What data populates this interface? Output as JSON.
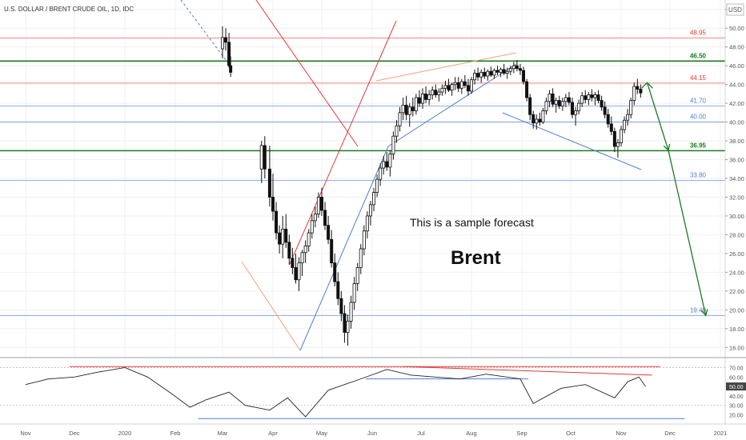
{
  "header": {
    "title": "U.S. DOLLAR / BRENT CRUDE OIL, 1D, IDC"
  },
  "currency_badge": "USD",
  "annotations": {
    "forecast_note": "This is a sample forecast",
    "main_label": "Brent"
  },
  "colors": {
    "up": "#111111",
    "down": "#111111",
    "red": "#e53935",
    "green": "#1b7a1f",
    "blue": "#4c7fd1",
    "orange": "#f4a07a",
    "grid": "#eef0f3",
    "axis_text": "#555555"
  },
  "chart_data": {
    "type": "candlestick",
    "title": "U.S. DOLLAR / BRENT CRUDE OIL, 1D, IDC",
    "y_axis": {
      "ylim": [
        15.0,
        53.0
      ],
      "ticks": [
        16,
        18,
        20,
        22,
        24,
        26,
        28,
        30,
        32,
        34,
        36,
        38,
        40,
        42,
        44,
        46,
        48,
        50,
        52
      ],
      "tick_labels": [
        "16.00",
        "18.00",
        "20.00",
        "22.00",
        "24.00",
        "26.00",
        "28.00",
        "30.00",
        "32.00",
        "34.00",
        "36.00",
        "38.00",
        "40.00",
        "42.00",
        "44.00",
        "46.00",
        "48.00",
        "50.00",
        "52.00"
      ]
    },
    "x_axis": {
      "labels": [
        "Nov",
        "Dec",
        "2020",
        "Feb",
        "Mar",
        "Apr",
        "May",
        "Jun",
        "Jul",
        "Aug",
        "Sep",
        "Oct",
        "Nov",
        "Dec",
        "2021"
      ],
      "dates": [
        "2019-11-01",
        "2019-12-01",
        "2020-01-01",
        "2020-02-01",
        "2020-03-01",
        "2020-04-01",
        "2020-05-01",
        "2020-06-01",
        "2020-07-01",
        "2020-08-01",
        "2020-09-01",
        "2020-10-01",
        "2020-11-01",
        "2020-12-01",
        "2021-01-01"
      ]
    },
    "levels": [
      {
        "value": 48.95,
        "label": "48.95",
        "color": "red",
        "style": "thin"
      },
      {
        "value": 46.5,
        "label": "46.50",
        "color": "green",
        "style": "bold"
      },
      {
        "value": 44.15,
        "label": "44.15",
        "color": "red",
        "style": "thin"
      },
      {
        "value": 41.7,
        "label": "41.70",
        "color": "blue",
        "style": "thin"
      },
      {
        "value": 40.0,
        "label": "40.00",
        "color": "blue",
        "style": "thin"
      },
      {
        "value": 36.95,
        "label": "36.95",
        "color": "green",
        "style": "bold"
      },
      {
        "value": 33.8,
        "label": "33.80",
        "color": "blue",
        "style": "thin"
      },
      {
        "value": 19.4,
        "label": "19.40",
        "color": "blue",
        "style": "thin"
      }
    ],
    "candles": [
      [
        "2020-03-01",
        47.8,
        50.2,
        46.8,
        49.0
      ],
      [
        "2020-03-03",
        49.0,
        50.0,
        47.6,
        48.5
      ],
      [
        "2020-03-05",
        48.5,
        49.5,
        45.8,
        46.0
      ],
      [
        "2020-03-06",
        46.0,
        47.0,
        44.8,
        45.3
      ],
      [
        "2020-03-25",
        35.0,
        38.0,
        33.5,
        37.5
      ],
      [
        "2020-03-27",
        37.5,
        38.5,
        34.0,
        35.0
      ],
      [
        "2020-03-30",
        35.0,
        37.5,
        31.0,
        32.0
      ],
      [
        "2020-04-01",
        32.0,
        34.5,
        29.5,
        30.5
      ],
      [
        "2020-04-03",
        30.5,
        31.5,
        27.5,
        28.2
      ],
      [
        "2020-04-05",
        28.2,
        29.0,
        26.0,
        27.0
      ],
      [
        "2020-04-07",
        27.0,
        30.0,
        25.5,
        28.6
      ],
      [
        "2020-04-09",
        28.6,
        30.2,
        26.6,
        27.2
      ],
      [
        "2020-04-11",
        27.2,
        28.0,
        24.8,
        25.5
      ],
      [
        "2020-04-13",
        25.5,
        26.6,
        23.8,
        24.5
      ],
      [
        "2020-04-15",
        24.5,
        26.0,
        22.8,
        23.2
      ],
      [
        "2020-04-17",
        23.2,
        25.6,
        22.0,
        25.0
      ],
      [
        "2020-04-19",
        25.0,
        26.4,
        23.6,
        26.1
      ],
      [
        "2020-04-21",
        26.1,
        27.4,
        25.0,
        26.8
      ],
      [
        "2020-04-23",
        26.8,
        28.6,
        26.2,
        28.2
      ],
      [
        "2020-04-25",
        28.2,
        30.2,
        27.6,
        29.5
      ],
      [
        "2020-04-27",
        29.5,
        31.0,
        28.8,
        30.2
      ],
      [
        "2020-04-29",
        30.2,
        32.5,
        29.8,
        32.0
      ],
      [
        "2020-05-01",
        32.0,
        33.0,
        30.0,
        30.6
      ],
      [
        "2020-05-03",
        30.6,
        31.5,
        28.5,
        29.0
      ],
      [
        "2020-05-05",
        29.0,
        30.0,
        27.0,
        27.5
      ],
      [
        "2020-05-07",
        27.5,
        28.5,
        24.5,
        25.0
      ],
      [
        "2020-05-09",
        25.0,
        26.0,
        22.5,
        23.0
      ],
      [
        "2020-05-11",
        23.0,
        24.0,
        20.5,
        21.2
      ],
      [
        "2020-05-13",
        21.2,
        22.0,
        18.8,
        19.6
      ],
      [
        "2020-05-15",
        19.6,
        20.5,
        16.5,
        17.6
      ],
      [
        "2020-05-17",
        17.6,
        19.5,
        16.2,
        18.8
      ],
      [
        "2020-05-19",
        18.8,
        21.5,
        18.0,
        20.8
      ],
      [
        "2020-05-21",
        20.8,
        23.5,
        20.0,
        22.8
      ],
      [
        "2020-05-23",
        22.8,
        25.0,
        22.0,
        24.5
      ],
      [
        "2020-05-25",
        24.5,
        27.0,
        23.8,
        26.5
      ],
      [
        "2020-05-27",
        26.5,
        29.0,
        25.8,
        28.4
      ],
      [
        "2020-05-29",
        28.4,
        30.5,
        27.6,
        30.0
      ],
      [
        "2020-05-31",
        30.0,
        31.6,
        29.0,
        31.2
      ],
      [
        "2020-06-02",
        31.2,
        33.0,
        30.5,
        32.5
      ],
      [
        "2020-06-04",
        32.5,
        34.4,
        32.0,
        33.9
      ],
      [
        "2020-06-06",
        33.9,
        35.6,
        33.2,
        35.1
      ],
      [
        "2020-06-08",
        35.1,
        36.4,
        34.4,
        35.8
      ],
      [
        "2020-06-10",
        35.8,
        36.8,
        34.8,
        35.2
      ],
      [
        "2020-06-12",
        35.2,
        37.0,
        34.2,
        36.6
      ],
      [
        "2020-06-14",
        36.6,
        39.0,
        36.0,
        38.5
      ],
      [
        "2020-06-16",
        38.5,
        40.2,
        37.8,
        39.6
      ],
      [
        "2020-06-18",
        39.6,
        41.6,
        39.0,
        41.0
      ],
      [
        "2020-06-20",
        41.0,
        42.6,
        40.2,
        41.8
      ],
      [
        "2020-06-22",
        41.8,
        42.8,
        40.2,
        40.8
      ],
      [
        "2020-06-24",
        40.8,
        42.0,
        39.5,
        41.6
      ],
      [
        "2020-06-26",
        41.6,
        42.6,
        40.6,
        41.2
      ],
      [
        "2020-06-28",
        41.2,
        43.0,
        40.8,
        42.6
      ],
      [
        "2020-06-30",
        42.6,
        43.4,
        41.6,
        42.0
      ],
      [
        "2020-07-02",
        42.0,
        43.6,
        41.4,
        43.0
      ],
      [
        "2020-07-04",
        43.0,
        43.8,
        42.0,
        42.4
      ],
      [
        "2020-07-06",
        42.4,
        43.4,
        41.8,
        42.9
      ],
      [
        "2020-07-08",
        42.9,
        43.8,
        42.4,
        43.4
      ],
      [
        "2020-07-10",
        43.4,
        44.0,
        42.6,
        42.9
      ],
      [
        "2020-07-12",
        42.9,
        43.6,
        42.2,
        43.2
      ],
      [
        "2020-07-14",
        43.2,
        44.0,
        42.8,
        43.6
      ],
      [
        "2020-07-16",
        43.6,
        44.4,
        43.0,
        43.9
      ],
      [
        "2020-07-18",
        43.9,
        44.6,
        43.2,
        43.4
      ],
      [
        "2020-07-20",
        43.4,
        44.2,
        42.8,
        44.0
      ],
      [
        "2020-07-22",
        44.0,
        44.8,
        43.4,
        44.2
      ],
      [
        "2020-07-24",
        44.2,
        44.8,
        43.2,
        43.6
      ],
      [
        "2020-07-26",
        43.6,
        44.6,
        43.0,
        44.3
      ],
      [
        "2020-07-28",
        44.3,
        45.0,
        43.6,
        43.9
      ],
      [
        "2020-07-30",
        43.9,
        44.6,
        42.8,
        43.3
      ],
      [
        "2020-08-01",
        43.3,
        44.8,
        43.0,
        44.5
      ],
      [
        "2020-08-03",
        44.5,
        45.6,
        44.0,
        45.2
      ],
      [
        "2020-08-05",
        45.2,
        45.8,
        44.4,
        44.8
      ],
      [
        "2020-08-07",
        44.8,
        45.6,
        44.2,
        45.3
      ],
      [
        "2020-08-09",
        45.3,
        45.8,
        44.6,
        44.9
      ],
      [
        "2020-08-11",
        44.9,
        45.6,
        44.4,
        45.4
      ],
      [
        "2020-08-13",
        45.4,
        45.9,
        44.8,
        45.0
      ],
      [
        "2020-08-15",
        45.0,
        45.7,
        44.6,
        45.5
      ],
      [
        "2020-08-17",
        45.5,
        46.0,
        45.0,
        45.3
      ],
      [
        "2020-08-19",
        45.3,
        45.8,
        44.8,
        45.6
      ],
      [
        "2020-08-21",
        45.6,
        46.2,
        45.0,
        45.2
      ],
      [
        "2020-08-23",
        45.2,
        45.8,
        44.6,
        45.4
      ],
      [
        "2020-08-25",
        45.4,
        46.0,
        45.0,
        45.7
      ],
      [
        "2020-08-27",
        45.7,
        46.4,
        45.2,
        46.0
      ],
      [
        "2020-08-29",
        46.0,
        46.6,
        45.4,
        45.7
      ],
      [
        "2020-08-31",
        45.7,
        46.2,
        45.0,
        45.5
      ],
      [
        "2020-09-02",
        45.5,
        45.9,
        44.0,
        44.3
      ],
      [
        "2020-09-04",
        44.3,
        44.6,
        42.2,
        42.6
      ],
      [
        "2020-09-06",
        42.6,
        43.0,
        40.2,
        40.8
      ],
      [
        "2020-09-08",
        40.8,
        41.2,
        39.3,
        39.9
      ],
      [
        "2020-09-10",
        39.9,
        40.8,
        39.2,
        40.3
      ],
      [
        "2020-09-12",
        40.3,
        41.0,
        39.6,
        40.0
      ],
      [
        "2020-09-14",
        40.0,
        41.5,
        39.8,
        41.2
      ],
      [
        "2020-09-16",
        41.2,
        42.6,
        40.8,
        42.2
      ],
      [
        "2020-09-18",
        42.2,
        43.4,
        41.6,
        43.0
      ],
      [
        "2020-09-20",
        43.0,
        43.6,
        41.6,
        41.9
      ],
      [
        "2020-09-22",
        41.9,
        42.6,
        41.0,
        42.3
      ],
      [
        "2020-09-24",
        42.3,
        42.8,
        41.4,
        41.7
      ],
      [
        "2020-09-26",
        41.7,
        42.6,
        41.2,
        42.2
      ],
      [
        "2020-09-28",
        42.2,
        43.0,
        41.6,
        42.6
      ],
      [
        "2020-09-30",
        42.6,
        43.2,
        41.8,
        42.1
      ],
      [
        "2020-10-02",
        42.1,
        42.6,
        40.4,
        40.8
      ],
      [
        "2020-10-04",
        40.8,
        41.6,
        39.6,
        41.2
      ],
      [
        "2020-10-06",
        41.2,
        42.4,
        40.8,
        42.0
      ],
      [
        "2020-10-08",
        42.0,
        43.2,
        41.6,
        42.8
      ],
      [
        "2020-10-10",
        42.8,
        43.4,
        42.0,
        42.4
      ],
      [
        "2020-10-12",
        42.4,
        43.2,
        41.8,
        42.9
      ],
      [
        "2020-10-14",
        42.9,
        43.5,
        42.2,
        42.6
      ],
      [
        "2020-10-16",
        42.6,
        43.2,
        41.8,
        42.9
      ],
      [
        "2020-10-18",
        42.9,
        43.4,
        42.0,
        42.3
      ],
      [
        "2020-10-20",
        42.3,
        42.8,
        41.2,
        41.6
      ],
      [
        "2020-10-22",
        41.6,
        42.2,
        40.4,
        40.8
      ],
      [
        "2020-10-24",
        40.8,
        41.4,
        39.4,
        39.8
      ],
      [
        "2020-10-26",
        39.8,
        40.6,
        38.6,
        39.0
      ],
      [
        "2020-10-28",
        39.0,
        39.4,
        36.8,
        37.4
      ],
      [
        "2020-10-30",
        37.4,
        38.2,
        36.2,
        37.8
      ],
      [
        "2020-11-01",
        37.8,
        39.6,
        37.4,
        39.2
      ],
      [
        "2020-11-03",
        39.2,
        40.6,
        38.8,
        40.2
      ],
      [
        "2020-11-05",
        40.2,
        41.4,
        39.6,
        40.8
      ],
      [
        "2020-11-07",
        40.8,
        42.6,
        40.4,
        42.3
      ],
      [
        "2020-11-09",
        42.3,
        44.2,
        41.8,
        43.8
      ],
      [
        "2020-11-11",
        43.8,
        44.6,
        43.0,
        43.5
      ],
      [
        "2020-11-13",
        43.5,
        44.0,
        42.6,
        43.1
      ]
    ],
    "forecast_path": [
      {
        "date": "2020-11-17",
        "value": 44.2
      },
      {
        "date": "2020-11-30",
        "value": 37.0
      },
      {
        "date": "2020-12-23",
        "value": 19.4
      }
    ],
    "indicator": {
      "name": "RSI",
      "ylim": [
        12,
        78
      ],
      "tick_labels": [
        "70.00",
        "60.00",
        "50.00",
        "40.00",
        "30.00",
        "20.00"
      ],
      "ticks": [
        70,
        60,
        50,
        40,
        30,
        20
      ],
      "current_value": "50.00",
      "series": [
        {
          "date": "2019-11-01",
          "value": 52
        },
        {
          "date": "2019-11-15",
          "value": 58
        },
        {
          "date": "2019-12-01",
          "value": 60
        },
        {
          "date": "2019-12-15",
          "value": 65
        },
        {
          "date": "2020-01-01",
          "value": 70
        },
        {
          "date": "2020-01-15",
          "value": 60
        },
        {
          "date": "2020-01-30",
          "value": 42
        },
        {
          "date": "2020-02-10",
          "value": 28
        },
        {
          "date": "2020-02-20",
          "value": 36
        },
        {
          "date": "2020-03-05",
          "value": 44
        },
        {
          "date": "2020-03-15",
          "value": 30
        },
        {
          "date": "2020-03-30",
          "value": 25
        },
        {
          "date": "2020-04-10",
          "value": 38
        },
        {
          "date": "2020-04-21",
          "value": 18
        },
        {
          "date": "2020-05-05",
          "value": 46
        },
        {
          "date": "2020-05-25",
          "value": 58
        },
        {
          "date": "2020-06-10",
          "value": 68
        },
        {
          "date": "2020-06-25",
          "value": 62
        },
        {
          "date": "2020-07-10",
          "value": 60
        },
        {
          "date": "2020-07-25",
          "value": 58
        },
        {
          "date": "2020-08-10",
          "value": 63
        },
        {
          "date": "2020-08-31",
          "value": 58
        },
        {
          "date": "2020-09-08",
          "value": 32
        },
        {
          "date": "2020-09-25",
          "value": 48
        },
        {
          "date": "2020-10-10",
          "value": 52
        },
        {
          "date": "2020-10-28",
          "value": 38
        },
        {
          "date": "2020-11-05",
          "value": 55
        },
        {
          "date": "2020-11-12",
          "value": 60
        },
        {
          "date": "2020-11-16",
          "value": 50
        }
      ]
    }
  }
}
